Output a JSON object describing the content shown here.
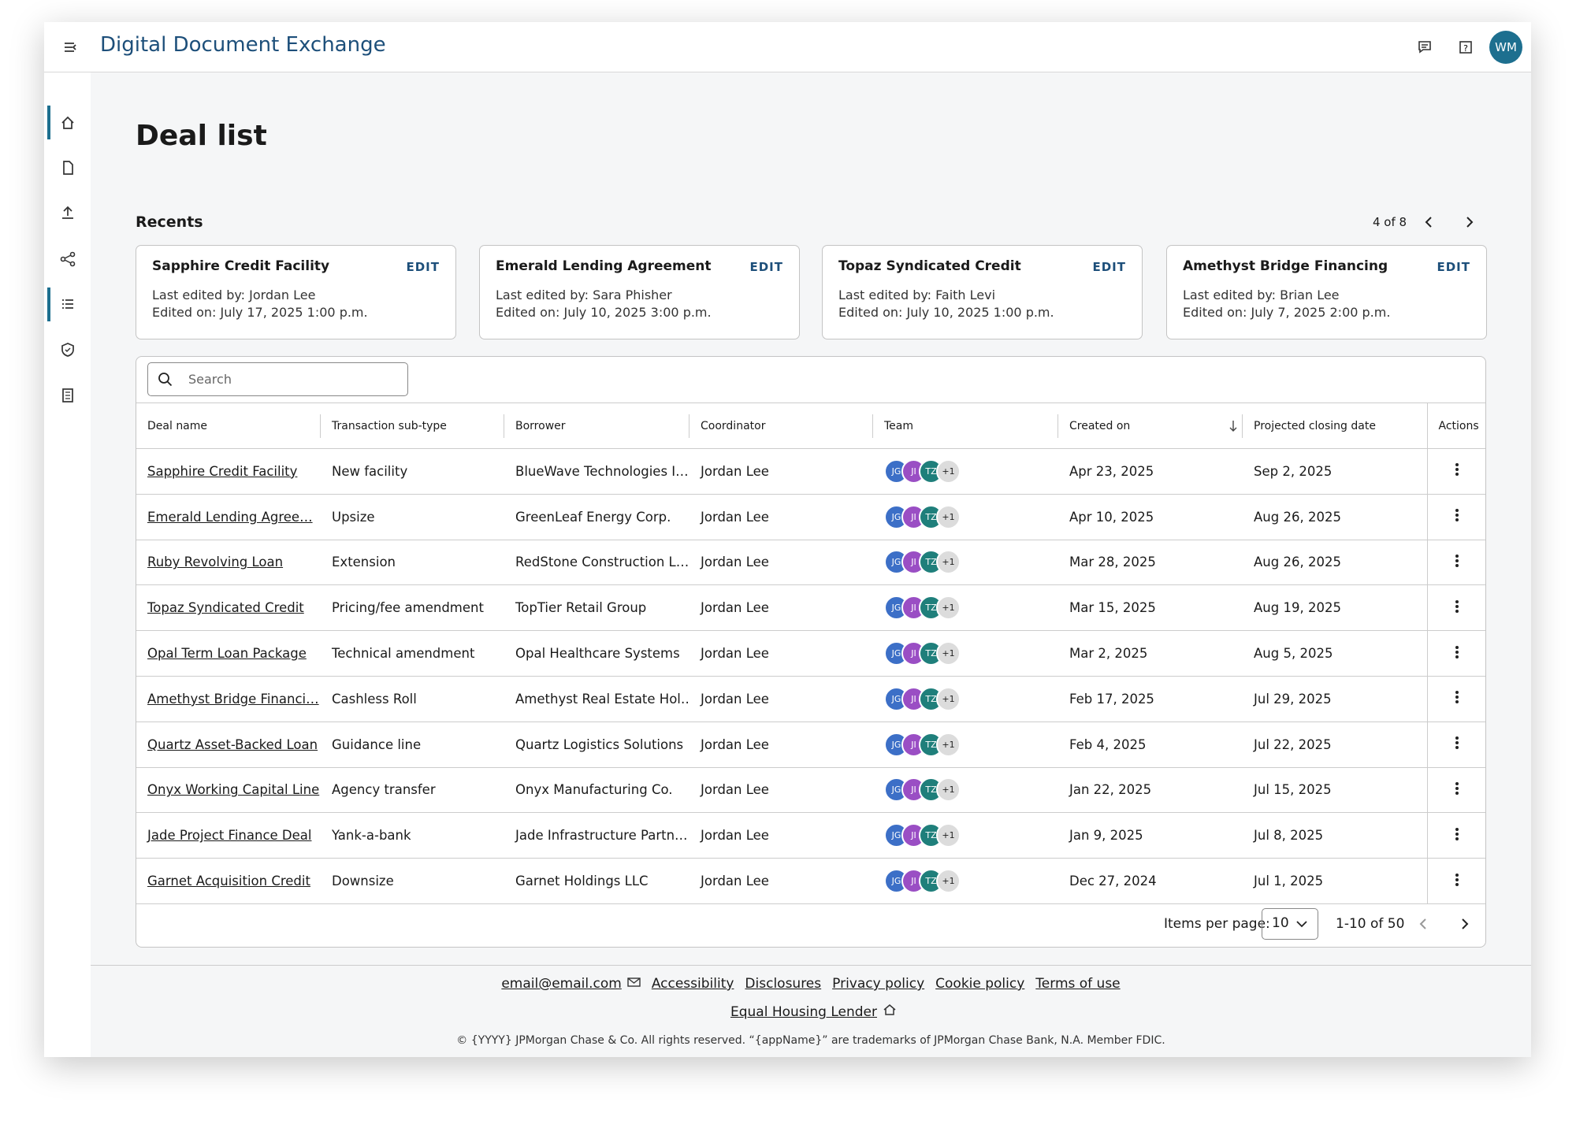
{
  "header": {
    "title": "Digital Document Exchange",
    "avatar": "WM"
  },
  "page": {
    "title": "Deal list"
  },
  "recents": {
    "title": "Recents",
    "pager": "4 of 8",
    "cards": [
      {
        "name": "Sapphire Credit Facility",
        "edit": "EDIT",
        "last_edited": "Last edited by: Jordan Lee",
        "edited_on": "Edited on: July 17, 2025 1:00 p.m."
      },
      {
        "name": "Emerald Lending Agreement",
        "edit": "EDIT",
        "last_edited": "Last edited by: Sara Phisher",
        "edited_on": "Edited on: July 10, 2025 3:00 p.m."
      },
      {
        "name": "Topaz Syndicated Credit",
        "edit": "EDIT",
        "last_edited": "Last edited by: Faith Levi",
        "edited_on": "Edited on: July 10, 2025 1:00 p.m."
      },
      {
        "name": "Amethyst Bridge Financing",
        "edit": "EDIT",
        "last_edited": "Last edited by: Brian Lee",
        "edited_on": "Edited on: July 7, 2025 2:00 p.m."
      }
    ]
  },
  "table": {
    "search_placeholder": "Search",
    "columns": [
      "Deal name",
      "Transaction sub-type",
      "Borrower",
      "Coordinator",
      "Team",
      "Created on",
      "Projected closing date",
      "Actions"
    ],
    "rows": [
      [
        "Sapphire Credit Facility",
        "New facility",
        "BlueWave Technologies I…",
        "Jordan Lee",
        [
          "JG",
          "JI",
          "TZ",
          "+1"
        ],
        "Apr 23, 2025",
        "Sep 2, 2025"
      ],
      [
        "Emerald Lending Agree…",
        "Upsize",
        "GreenLeaf Energy Corp.",
        "Jordan Lee",
        [
          "JG",
          "JI",
          "TZ",
          "+1"
        ],
        "Apr 10, 2025",
        "Aug 26, 2025"
      ],
      [
        "Ruby Revolving Loan",
        "Extension",
        "RedStone Construction L…",
        "Jordan Lee",
        [
          "JG",
          "JI",
          "TZ",
          "+1"
        ],
        "Mar 28, 2025",
        "Aug 26, 2025"
      ],
      [
        "Topaz Syndicated Credit",
        "Pricing/fee amendment",
        "TopTier Retail Group",
        "Jordan Lee",
        [
          "JG",
          "JI",
          "TZ",
          "+1"
        ],
        "Mar 15, 2025",
        "Aug 19, 2025"
      ],
      [
        "Opal Term Loan Package",
        "Technical amendment",
        "Opal Healthcare Systems",
        "Jordan Lee",
        [
          "JG",
          "JI",
          "TZ",
          "+1"
        ],
        "Mar 2, 2025",
        "Aug 5, 2025"
      ],
      [
        "Amethyst Bridge Financi…",
        "Cashless Roll",
        "Amethyst Real Estate Hol…",
        "Jordan Lee",
        [
          "JG",
          "JI",
          "TZ",
          "+1"
        ],
        "Feb 17, 2025",
        "Jul 29, 2025"
      ],
      [
        "Quartz Asset-Backed Loan",
        "Guidance line",
        "Quartz Logistics Solutions",
        "Jordan Lee",
        [
          "JG",
          "JI",
          "TZ",
          "+1"
        ],
        "Feb 4, 2025",
        "Jul 22, 2025"
      ],
      [
        "Onyx Working Capital Line",
        "Agency transfer",
        "Onyx Manufacturing Co.",
        "Jordan Lee",
        [
          "JG",
          "JI",
          "TZ",
          "+1"
        ],
        "Jan 22, 2025",
        "Jul 15, 2025"
      ],
      [
        "Jade Project Finance Deal",
        "Yank-a-bank",
        "Jade Infrastructure Partn…",
        "Jordan Lee",
        [
          "JG",
          "JI",
          "TZ",
          "+1"
        ],
        "Jan 9, 2025",
        "Jul 8, 2025"
      ],
      [
        "Garnet Acquisition Credit",
        "Downsize",
        "Garnet Holdings LLC",
        "Jordan Lee",
        [
          "JG",
          "JI",
          "TZ",
          "+1"
        ],
        "Dec 27, 2024",
        "Jul 1, 2025"
      ]
    ]
  },
  "pagination": {
    "label": "Items per page:",
    "value": "10",
    "range": "1-10 of 50"
  },
  "footer": {
    "links": [
      "email@email.com",
      "Accessibility",
      "Disclosures",
      "Privacy policy",
      "Cookie policy",
      "Terms of use"
    ],
    "equal_housing": "Equal Housing Lender",
    "copyright": "© {YYYY} JPMorgan Chase & Co. All rights reserved. “{appName}” are trademarks of JPMorgan Chase Bank, N.A. Member FDIC."
  }
}
